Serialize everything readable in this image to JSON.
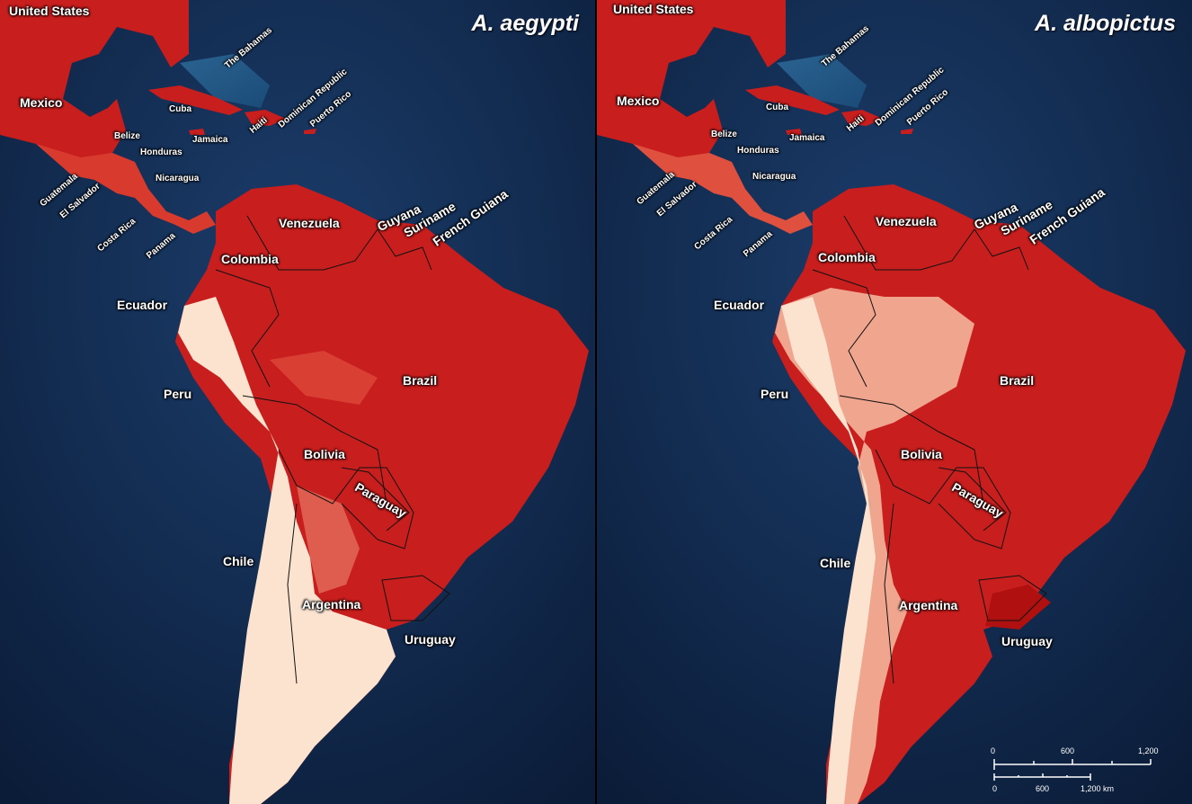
{
  "panels": [
    {
      "title": "A. aegypti"
    },
    {
      "title": "A. albopictus"
    }
  ],
  "labels": {
    "united_states": "United States",
    "mexico": "Mexico",
    "bahamas": "The Bahamas",
    "cuba": "Cuba",
    "haiti": "Haiti",
    "dominican_republic": "Dominican Republic",
    "puerto_rico": "Puerto Rico",
    "belize": "Belize",
    "jamaica": "Jamaica",
    "honduras": "Honduras",
    "guatemala": "Guatemala",
    "el_salvador": "El Salvador",
    "nicaragua": "Nicaragua",
    "costa_rica": "Costa Rica",
    "panama": "Panama",
    "venezuela": "Venezuela",
    "guyana": "Guyana",
    "suriname": "Suriname",
    "french_guiana": "French Guiana",
    "colombia": "Colombia",
    "ecuador": "Ecuador",
    "peru": "Peru",
    "brazil": "Brazil",
    "bolivia": "Bolivia",
    "paraguay": "Paraguay",
    "chile": "Chile",
    "argentina": "Argentina",
    "uruguay": "Uruguay"
  },
  "scale": {
    "top_ticks": [
      "0",
      "600",
      "1,200"
    ],
    "bottom_ticks": [
      "0",
      "600",
      "1,200 km"
    ]
  },
  "colors": {
    "ocean": "#0d2142",
    "high_suitability": "#c81e1e",
    "low_suitability": "#fbe3d0"
  }
}
